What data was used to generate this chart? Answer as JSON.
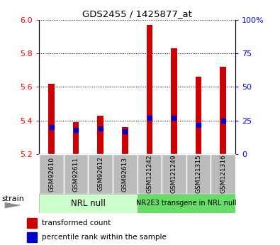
{
  "title": "GDS2455 / 1425877_at",
  "samples": [
    "GSM92610",
    "GSM92611",
    "GSM92612",
    "GSM92613",
    "GSM121242",
    "GSM121249",
    "GSM121315",
    "GSM121316"
  ],
  "transformed_counts": [
    5.62,
    5.39,
    5.43,
    5.36,
    5.97,
    5.83,
    5.66,
    5.72
  ],
  "percentile_ranks": [
    20,
    18,
    19,
    17,
    27,
    27,
    22,
    25
  ],
  "bar_base": 5.2,
  "ylim_left": [
    5.2,
    6.0
  ],
  "ylim_right": [
    0,
    100
  ],
  "yticks_left": [
    5.2,
    5.4,
    5.6,
    5.8,
    6.0
  ],
  "yticks_right": [
    0,
    25,
    50,
    75,
    100
  ],
  "ytick_labels_right": [
    "0",
    "25",
    "50",
    "75",
    "100%"
  ],
  "group1_label": "NRL null",
  "group2_label": "NR2E3 transgene in NRL null",
  "bar_color": "#cc0000",
  "percentile_color": "#0000cc",
  "group1_bg": "#ccffcc",
  "group2_bg": "#66dd66",
  "label_bg": "#bbbbbb",
  "strain_label": "strain",
  "legend_bar_label": "transformed count",
  "legend_pct_label": "percentile rank within the sample",
  "bar_width": 0.25
}
